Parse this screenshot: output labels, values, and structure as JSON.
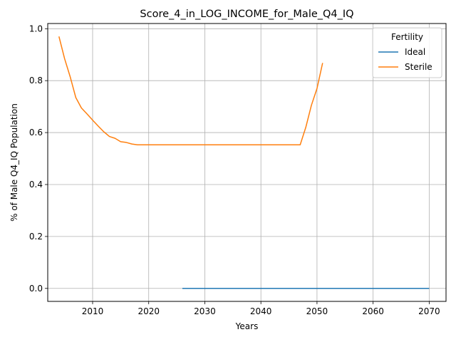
{
  "chart_data": {
    "type": "line",
    "title": "Score_4_in_LOG_INCOME_for_Male_Q4_IQ",
    "xlabel": "Years",
    "ylabel": "% of Male Q4_IQ Population",
    "xlim": [
      2002,
      2073
    ],
    "ylim": [
      -0.05,
      1.02
    ],
    "xticks": [
      2010,
      2020,
      2030,
      2040,
      2050,
      2060,
      2070
    ],
    "yticks": [
      0.0,
      0.2,
      0.4,
      0.6,
      0.8,
      1.0
    ],
    "xtick_labels": [
      "2010",
      "2020",
      "2030",
      "2040",
      "2050",
      "2060",
      "2070"
    ],
    "ytick_labels": [
      "0.0",
      "0.2",
      "0.4",
      "0.6",
      "0.8",
      "1.0"
    ],
    "grid": true,
    "legend": {
      "title": "Fertility",
      "position": "top-right"
    },
    "series": [
      {
        "name": "Ideal",
        "color": "#1f77b4",
        "x": [
          2026,
          2030,
          2040,
          2050,
          2060,
          2070
        ],
        "y": [
          0.0,
          0.0,
          0.0,
          0.0,
          0.0,
          0.0
        ]
      },
      {
        "name": "Sterile",
        "color": "#ff7f0e",
        "x": [
          2004,
          2005,
          2006,
          2007,
          2008,
          2009,
          2010,
          2011,
          2012,
          2013,
          2014,
          2015,
          2016,
          2017,
          2018,
          2019,
          2020,
          2025,
          2030,
          2035,
          2040,
          2045,
          2047,
          2048,
          2049,
          2050,
          2051
        ],
        "y": [
          0.97,
          0.885,
          0.815,
          0.735,
          0.695,
          0.672,
          0.648,
          0.625,
          0.603,
          0.585,
          0.578,
          0.565,
          0.562,
          0.556,
          0.553,
          0.553,
          0.553,
          0.553,
          0.553,
          0.553,
          0.553,
          0.553,
          0.553,
          0.62,
          0.705,
          0.77,
          0.868
        ]
      }
    ]
  }
}
